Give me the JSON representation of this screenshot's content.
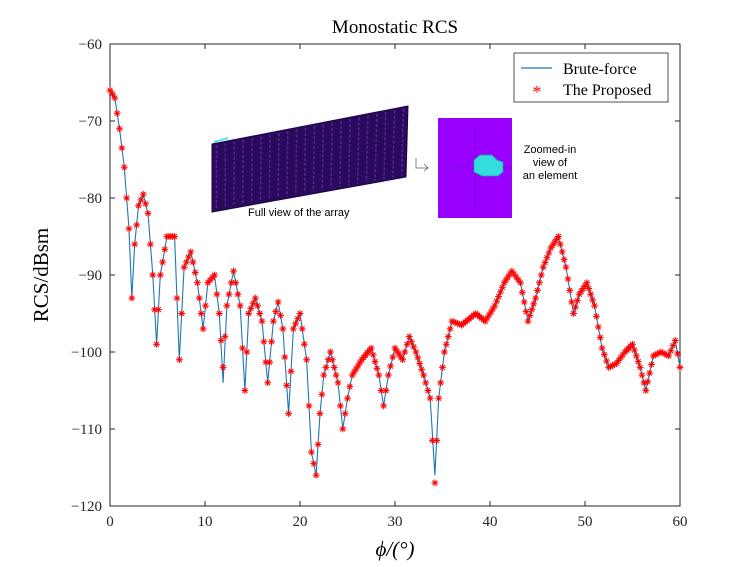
{
  "chart_data": {
    "type": "line",
    "title": "Monostatic RCS",
    "xlabel": "ϕ/(°)",
    "ylabel": "RCS/dBsm",
    "xlim": [
      0,
      60
    ],
    "ylim": [
      -120,
      -60
    ],
    "xticks": [
      0,
      10,
      20,
      30,
      40,
      50,
      60
    ],
    "yticks": [
      -60,
      -70,
      -80,
      -90,
      -100,
      -110,
      -120
    ],
    "xtick_labels": [
      "0",
      "10",
      "20",
      "30",
      "40",
      "50",
      "60"
    ],
    "ytick_labels": [
      "−60",
      "−70",
      "−80",
      "−90",
      "−100",
      "−110",
      "−120"
    ],
    "grid": false,
    "legend_position": "top-right",
    "series": [
      {
        "name": "Brute-force",
        "style": "line",
        "color": "#1f77b4",
        "x": [
          0,
          0.5,
          1,
          1.5,
          2,
          2.3,
          2.6,
          3,
          3.5,
          4,
          4.5,
          4.9,
          5.3,
          6,
          6.8,
          7.3,
          7.8,
          8.5,
          9.2,
          9.8,
          10.3,
          11,
          11.5,
          11.9,
          12.3,
          13,
          13.7,
          14.2,
          14.6,
          15.3,
          16,
          16.6,
          17.2,
          17.7,
          18.2,
          18.8,
          19.3,
          20,
          20.7,
          21.2,
          21.7,
          22.1,
          22.5,
          23.2,
          24,
          24.5,
          25,
          25.5,
          26.5,
          27.5,
          28.3,
          28.8,
          29.3,
          30,
          30.8,
          31.5,
          32.2,
          33,
          33.7,
          34.2,
          34.6,
          35.2,
          36,
          37,
          38,
          38.5,
          39.5,
          40.5,
          41.5,
          42.3,
          43.2,
          44,
          44.8,
          45.6,
          46.4,
          47.2,
          48,
          48.8,
          49.4,
          50.2,
          51,
          51.8,
          52.5,
          53.3,
          54.2,
          55,
          55.8,
          56.4,
          57.2,
          58,
          58.8,
          59.5,
          60
        ],
        "y": [
          -66,
          -67,
          -71,
          -76,
          -84,
          -93,
          -86,
          -81,
          -79.5,
          -82,
          -90,
          -99,
          -90,
          -85,
          -85,
          -101,
          -89,
          -87,
          -91,
          -97,
          -91,
          -90,
          -95,
          -104,
          -94,
          -89.5,
          -94,
          -105,
          -95,
          -93,
          -96,
          -104,
          -96,
          -93.5,
          -97,
          -108,
          -97,
          -95,
          -101,
          -113,
          -116,
          -108,
          -103,
          -100,
          -104,
          -110,
          -106,
          -103,
          -101,
          -99.5,
          -103,
          -107,
          -103,
          -99.5,
          -101,
          -98,
          -100,
          -103,
          -106,
          -116,
          -106,
          -100,
          -96,
          -96.5,
          -95.5,
          -95,
          -96,
          -94,
          -91,
          -89.5,
          -91,
          -96,
          -93,
          -89,
          -86.5,
          -85,
          -89,
          -95,
          -92.5,
          -91,
          -94,
          -99.5,
          -102,
          -101.5,
          -100,
          -99,
          -102,
          -105,
          -100.5,
          -100,
          -100.5,
          -98.5,
          -102
        ]
      },
      {
        "name": "The Proposed",
        "style": "markers",
        "marker": "*",
        "color": "#ff0000",
        "x": [
          0,
          0.5,
          1,
          1.5,
          2,
          2.3,
          2.6,
          3,
          3.5,
          4,
          4.5,
          4.9,
          5.3,
          6,
          6.8,
          7.3,
          7.8,
          8.5,
          9.2,
          9.8,
          10.3,
          11,
          11.5,
          11.9,
          12.3,
          13,
          13.7,
          14.2,
          14.6,
          15.3,
          16,
          16.6,
          17.2,
          17.7,
          18.2,
          18.8,
          19.3,
          20,
          20.7,
          21.2,
          21.7,
          22.1,
          22.5,
          23.2,
          24,
          24.5,
          25,
          25.5,
          26.5,
          27.5,
          28.3,
          28.8,
          29.3,
          30,
          30.8,
          31.5,
          32.2,
          33,
          33.7,
          34.2,
          34.6,
          35.2,
          36,
          37,
          38,
          38.5,
          39.5,
          40.5,
          41.5,
          42.3,
          43.2,
          44,
          44.8,
          45.6,
          46.4,
          47.2,
          48,
          48.8,
          49.4,
          50.2,
          51,
          51.8,
          52.5,
          53.3,
          54.2,
          55,
          55.8,
          56.4,
          57.2,
          58,
          58.8,
          59.5,
          60
        ],
        "y": [
          -66,
          -67,
          -71,
          -76,
          -84,
          -93,
          -86,
          -81,
          -79.5,
          -82,
          -90,
          -99,
          -90,
          -85,
          -85,
          -101,
          -89,
          -87,
          -91,
          -97,
          -91,
          -90,
          -95,
          -102,
          -94,
          -89.5,
          -94,
          -105,
          -95,
          -93,
          -96,
          -104,
          -96,
          -93.5,
          -97,
          -108,
          -97,
          -95,
          -101,
          -113,
          -116,
          -108,
          -103,
          -100,
          -104,
          -110,
          -106,
          -103,
          -101,
          -99.5,
          -103,
          -107,
          -103,
          -99.5,
          -101,
          -98,
          -100,
          -103,
          -106,
          -117,
          -106,
          -100,
          -96,
          -96.5,
          -95.5,
          -95,
          -96,
          -94,
          -91,
          -89.5,
          -91,
          -96,
          -93,
          -89,
          -86.5,
          -85,
          -89,
          -95,
          -92.5,
          -91,
          -94,
          -99.5,
          -102,
          -101.5,
          -100,
          -99,
          -102,
          -105,
          -100.5,
          -100,
          -100.5,
          -98.5,
          -102
        ]
      }
    ],
    "annotations": [
      "Full view of the array",
      "Zoomed-in\nview  of\nan element"
    ]
  },
  "colors": {
    "line": "#1f77b4",
    "marker": "#ff0000",
    "array_fill": "#2a0a5a",
    "zoom_bg": "#9900ff",
    "zoom_element": "#33dddd"
  }
}
